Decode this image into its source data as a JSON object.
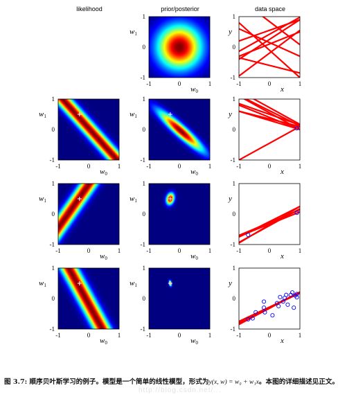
{
  "column_titles": {
    "likelihood": "likelihood",
    "posterior": "prior/posterior",
    "data_space": "data space"
  },
  "ticks": {
    "min": "-1",
    "mid": "0",
    "max": "1"
  },
  "axis_labels": {
    "w0": "w",
    "w0_sub": "0",
    "w1": "w",
    "w1_sub": "1",
    "x": "x",
    "y": "y"
  },
  "caption": {
    "prefix": "图 3.7: 顺序贝叶斯学习的例子。模型是一个简单的线性模型，形式为",
    "formula": "y(x, w) = w₀ + w₁x",
    "suffix": "。本图的详细描述见正文。"
  },
  "watermark": "http://blog.csdn.net/...",
  "colors": {
    "line": "#ff0000",
    "point": "#0000ff",
    "heat_low": "#00008f",
    "cross": "#ffffff"
  },
  "rows": [
    {
      "likelihood": null,
      "posterior": {
        "cx": 0.0,
        "cy": 0.0,
        "sx": 0.5,
        "sy": 0.5,
        "rho": 0.0
      },
      "lines": [
        [
          0.84,
          -0.76
        ],
        [
          0.42,
          0.56
        ],
        [
          0.1,
          0.4
        ],
        [
          -0.1,
          -0.9
        ],
        [
          0.55,
          0.35
        ],
        [
          -0.2,
          0.75
        ],
        [
          0.15,
          -0.45
        ],
        [
          -0.6,
          -0.25
        ],
        [
          0.25,
          0.65
        ]
      ],
      "points": []
    },
    {
      "likelihood": {
        "obs_x": 0.9,
        "obs_y": 0.04,
        "sigma": 0.2
      },
      "posterior": {
        "cx": 0.05,
        "cy": -0.05,
        "sx": 0.5,
        "sy": 0.45,
        "rho": -0.93
      },
      "lines": [
        [
          0.72,
          -0.55
        ],
        [
          0.62,
          -0.5
        ],
        [
          0.5,
          -0.35
        ],
        [
          0.35,
          -0.25
        ],
        [
          -0.45,
          0.55
        ],
        [
          0.4,
          -0.4
        ],
        [
          0.55,
          -0.55
        ],
        [
          0.3,
          -0.3
        ]
      ],
      "points": [
        [
          0.9,
          0.04
        ]
      ]
    },
    {
      "likelihood": {
        "obs_x": -0.7,
        "obs_y": -0.68,
        "sigma": 0.2
      },
      "posterior": {
        "cx": -0.3,
        "cy": 0.5,
        "sx": 0.09,
        "sy": 0.13,
        "rho": 0.2
      },
      "lines": [
        [
          -0.33,
          0.4
        ],
        [
          -0.25,
          0.5
        ],
        [
          -0.3,
          0.45
        ],
        [
          -0.38,
          0.55
        ],
        [
          -0.28,
          0.42
        ],
        [
          -0.35,
          0.6
        ]
      ],
      "points": [
        [
          0.9,
          0.04
        ],
        [
          -0.7,
          -0.68
        ]
      ]
    },
    {
      "likelihood": {
        "obs_x": 0.55,
        "obs_y": -0.1,
        "sigma": 0.2
      },
      "posterior": {
        "cx": -0.3,
        "cy": 0.5,
        "sx": 0.03,
        "sy": 0.06,
        "rho": -0.3
      },
      "lines": [
        [
          -0.3,
          0.48
        ],
        [
          -0.29,
          0.5
        ],
        [
          -0.31,
          0.52
        ],
        [
          -0.3,
          0.5
        ],
        [
          -0.28,
          0.47
        ],
        [
          -0.32,
          0.53
        ]
      ],
      "points": [
        [
          0.9,
          0.04
        ],
        [
          -0.7,
          -0.68
        ],
        [
          -0.18,
          -0.1
        ],
        [
          -0.18,
          -0.3
        ],
        [
          -0.15,
          -0.45
        ],
        [
          0.1,
          -0.55
        ],
        [
          -0.55,
          -0.65
        ],
        [
          -0.45,
          -0.45
        ],
        [
          0.25,
          -0.15
        ],
        [
          0.45,
          -0.1
        ],
        [
          0.5,
          0.02
        ],
        [
          0.6,
          -0.2
        ],
        [
          0.7,
          0.12
        ],
        [
          0.75,
          0.2
        ],
        [
          0.8,
          -0.3
        ],
        [
          0.85,
          0.1
        ],
        [
          0.9,
          0.15
        ],
        [
          0.35,
          0.05
        ],
        [
          0.55,
          0.12
        ],
        [
          0.3,
          -0.25
        ]
      ]
    }
  ]
}
